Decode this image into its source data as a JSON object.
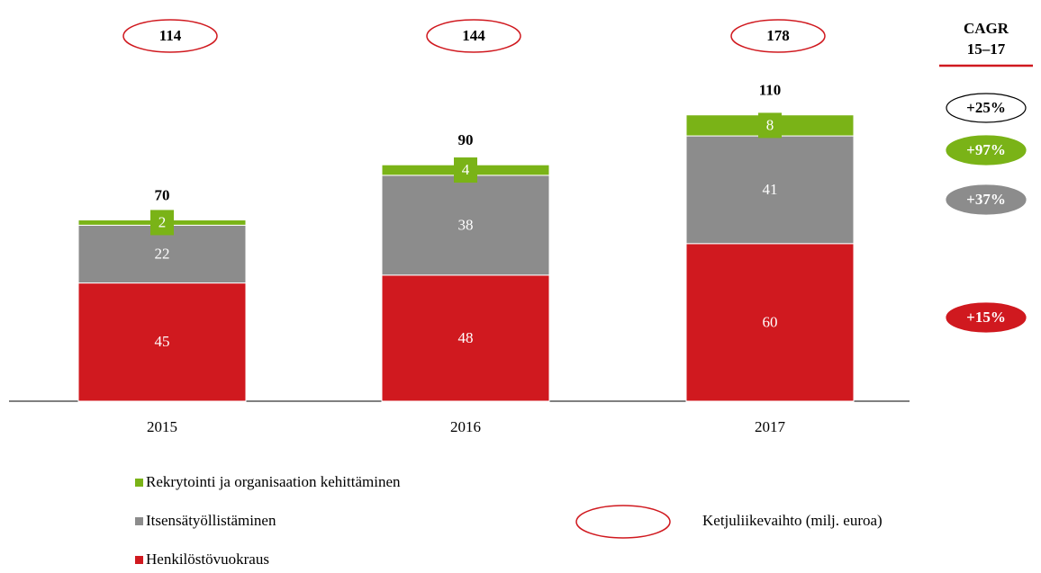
{
  "chart_data": {
    "type": "stacked_bar",
    "categories": [
      "2015",
      "2016",
      "2017"
    ],
    "series": [
      {
        "name": "Henkilöstövuokraus",
        "color": "#d0191f",
        "values": [
          45,
          48,
          60
        ]
      },
      {
        "name": "Itsensätyöllistäminen",
        "color": "#8c8c8c",
        "values": [
          22,
          38,
          41
        ]
      },
      {
        "name": "Rekrytointi ja organisaation kehittäminen",
        "color": "#7ab317",
        "values": [
          2,
          4,
          8
        ]
      }
    ],
    "totals": [
      70,
      90,
      110
    ],
    "chain_revenue": {
      "name": "Ketjuliikevaihto (milj. euroa)",
      "values": [
        114,
        144,
        178
      ]
    },
    "cagr": {
      "title": "CAGR",
      "period": "15–17",
      "values": [
        25,
        97,
        37,
        15
      ],
      "value_labels": [
        "+25%",
        "+97%",
        "+37%",
        "+15%"
      ],
      "colors": [
        "#ffffff",
        "#7ab317",
        "#8c8c8c",
        "#d0191f"
      ]
    }
  }
}
